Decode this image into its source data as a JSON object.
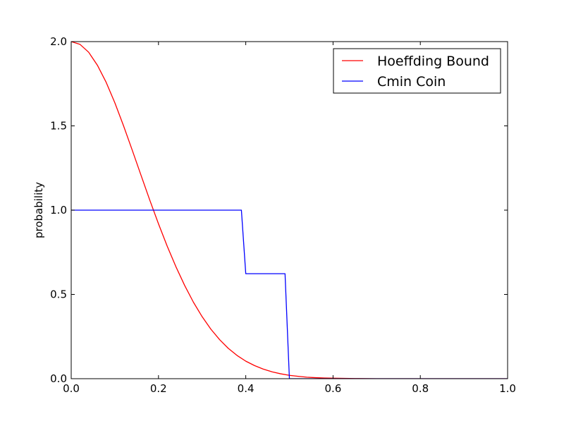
{
  "chart_data": {
    "type": "line",
    "title": "",
    "xlabel": "",
    "ylabel": "probability",
    "xlim": [
      0.0,
      1.0
    ],
    "ylim": [
      0.0,
      2.0
    ],
    "xticks": [
      "0.0",
      "0.2",
      "0.4",
      "0.6",
      "0.8",
      "1.0"
    ],
    "yticks": [
      "0.0",
      "0.5",
      "1.0",
      "1.5",
      "2.0"
    ],
    "grid": false,
    "legend_position": "top-right",
    "series": [
      {
        "name": "Hoeffding Bound",
        "color": "#ff0000",
        "x": [
          0.0,
          0.02,
          0.04,
          0.06,
          0.08,
          0.1,
          0.12,
          0.14,
          0.16,
          0.18,
          0.2,
          0.22,
          0.24,
          0.26,
          0.28,
          0.3,
          0.32,
          0.34,
          0.36,
          0.38,
          0.4,
          0.42,
          0.44,
          0.46,
          0.48,
          0.5,
          0.52,
          0.54,
          0.56,
          0.58,
          0.6,
          0.65,
          0.7,
          0.8,
          0.9,
          1.0
        ],
        "y": [
          2.0,
          1.984,
          1.937,
          1.86,
          1.759,
          1.637,
          1.5,
          1.355,
          1.207,
          1.06,
          0.919,
          0.786,
          0.664,
          0.553,
          0.454,
          0.368,
          0.294,
          0.232,
          0.18,
          0.138,
          0.104,
          0.078,
          0.057,
          0.041,
          0.029,
          0.02,
          0.014,
          0.009,
          0.006,
          0.004,
          0.003,
          0.001,
          0.0,
          0.0,
          0.0,
          0.0
        ]
      },
      {
        "name": "Cmin Coin",
        "color": "#0000ff",
        "x": [
          0.0,
          0.39,
          0.4,
          0.49,
          0.5,
          1.0
        ],
        "y": [
          1.0,
          1.0,
          0.623,
          0.623,
          0.0,
          0.0
        ]
      }
    ]
  }
}
